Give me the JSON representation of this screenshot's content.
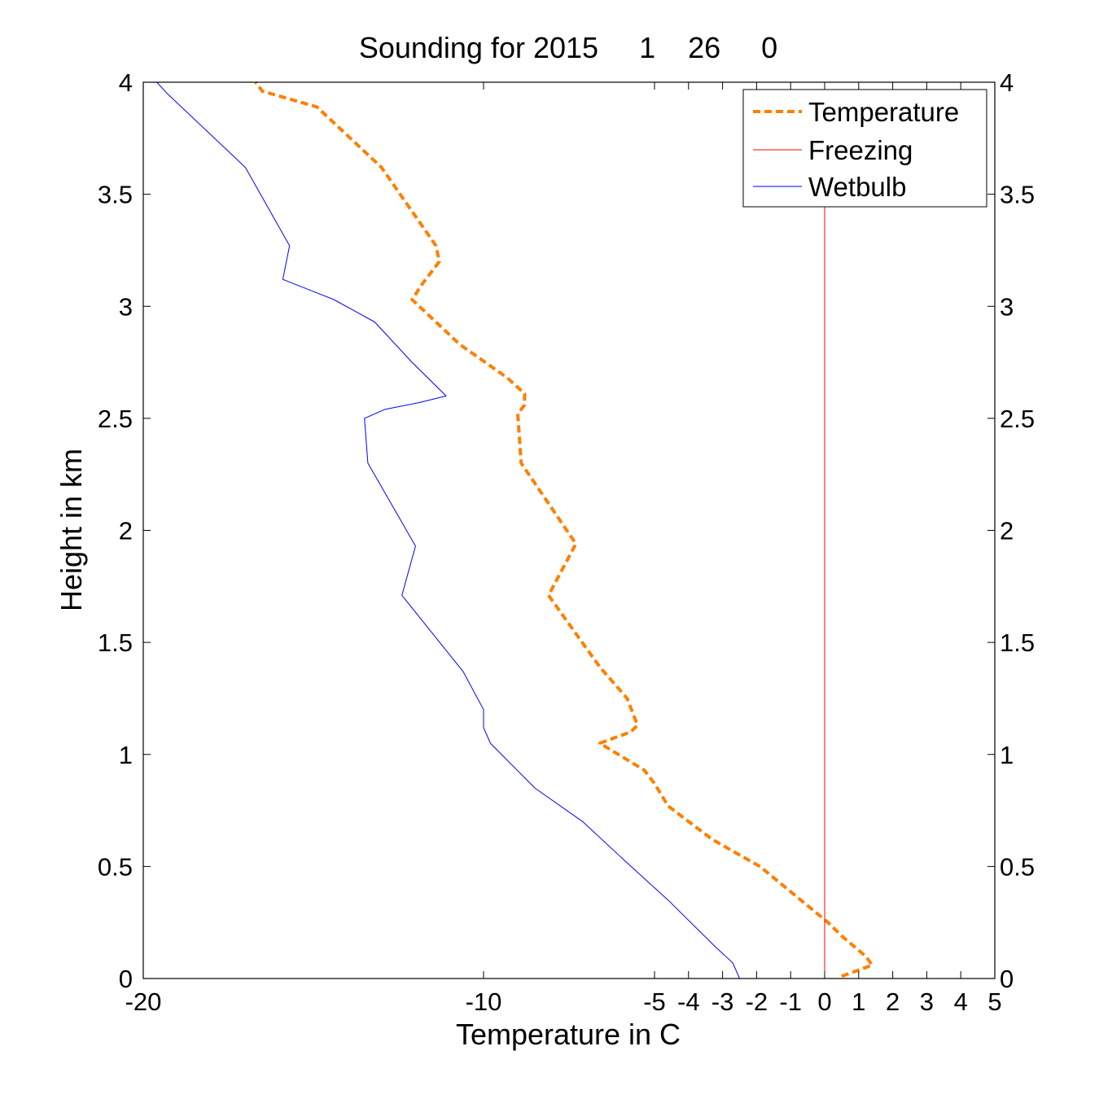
{
  "chart_data": {
    "type": "line",
    "title": "Sounding for 2015     1    26     0",
    "xlabel": "Temperature in C",
    "ylabel": "Height in km",
    "xlim": [
      -20,
      5
    ],
    "ylim": [
      0,
      4
    ],
    "x_tick_labels": [
      "-20",
      "-10",
      "-5",
      "-4",
      "-3",
      "-2",
      "-1",
      "0",
      "1",
      "2",
      "3",
      "4",
      "5"
    ],
    "x_tick_values": [
      -20,
      -10,
      -5,
      -4,
      -3,
      -2,
      -1,
      0,
      1,
      2,
      3,
      4,
      5
    ],
    "y_tick_labels": [
      "0",
      "0.5",
      "1",
      "1.5",
      "2",
      "2.5",
      "3",
      "3.5",
      "4"
    ],
    "y_tick_values": [
      0,
      0.5,
      1,
      1.5,
      2,
      2.5,
      3,
      3.5,
      4
    ],
    "right_axis_mirrored": true,
    "grid": false,
    "legend_position": "top-right",
    "series": [
      {
        "name": "Temperature",
        "color": "#ff7f00",
        "style": "dashed",
        "points": [
          [
            0.5,
            0.01
          ],
          [
            1.4,
            0.06
          ],
          [
            1.2,
            0.1
          ],
          [
            0.5,
            0.19
          ],
          [
            0.1,
            0.25
          ],
          [
            -1.9,
            0.5
          ],
          [
            -3.3,
            0.62
          ],
          [
            -4.6,
            0.77
          ],
          [
            -5.0,
            0.87
          ],
          [
            -5.3,
            0.93
          ],
          [
            -6.6,
            1.05
          ],
          [
            -5.7,
            1.1
          ],
          [
            -5.5,
            1.13
          ],
          [
            -5.8,
            1.25
          ],
          [
            -6.6,
            1.39
          ],
          [
            -8.1,
            1.71
          ],
          [
            -7.3,
            1.94
          ],
          [
            -8.9,
            2.3
          ],
          [
            -9.0,
            2.52
          ],
          [
            -8.8,
            2.56
          ],
          [
            -8.8,
            2.61
          ],
          [
            -9.3,
            2.68
          ],
          [
            -10.7,
            2.83
          ],
          [
            -12.1,
            3.03
          ],
          [
            -11.8,
            3.1
          ],
          [
            -11.3,
            3.2
          ],
          [
            -11.4,
            3.27
          ],
          [
            -13.0,
            3.62
          ],
          [
            -14.9,
            3.89
          ],
          [
            -16.5,
            3.96
          ],
          [
            -16.7,
            4.0
          ]
        ]
      },
      {
        "name": "Freezing",
        "color": "#ff0000",
        "style": "solid",
        "points": [
          [
            0,
            0
          ],
          [
            0,
            4
          ]
        ]
      },
      {
        "name": "Wetbulb",
        "color": "#0000ff",
        "style": "solid",
        "points": [
          [
            -2.5,
            0.0
          ],
          [
            -2.7,
            0.07
          ],
          [
            -3.2,
            0.14
          ],
          [
            -4.6,
            0.35
          ],
          [
            -5.9,
            0.53
          ],
          [
            -7.1,
            0.7
          ],
          [
            -8.5,
            0.85
          ],
          [
            -9.8,
            1.05
          ],
          [
            -10.0,
            1.12
          ],
          [
            -10.0,
            1.2
          ],
          [
            -10.6,
            1.37
          ],
          [
            -12.4,
            1.71
          ],
          [
            -12.0,
            1.93
          ],
          [
            -13.4,
            2.3
          ],
          [
            -13.5,
            2.5
          ],
          [
            -12.9,
            2.54
          ],
          [
            -11.9,
            2.57
          ],
          [
            -11.1,
            2.6
          ],
          [
            -12.1,
            2.75
          ],
          [
            -13.2,
            2.93
          ],
          [
            -14.4,
            3.03
          ],
          [
            -15.9,
            3.12
          ],
          [
            -15.7,
            3.27
          ],
          [
            -17.0,
            3.62
          ],
          [
            -19.3,
            3.95
          ],
          [
            -19.6,
            4.0
          ]
        ]
      }
    ]
  }
}
